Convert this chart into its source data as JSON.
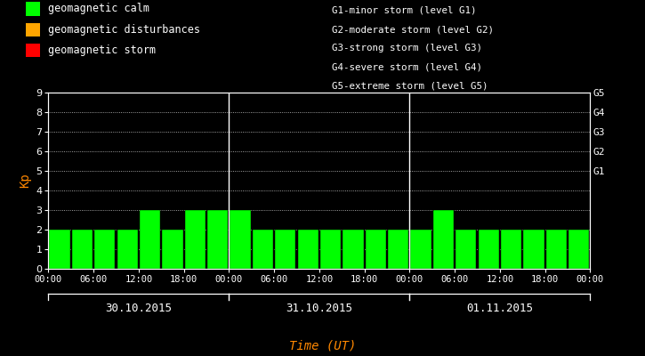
{
  "background_color": "#000000",
  "plot_bg_color": "#000000",
  "bar_color": "#00ff00",
  "grid_color": "#ffffff",
  "text_color": "#ffffff",
  "ylabel_color": "#ff8800",
  "xlabel_color": "#ff8800",
  "days": [
    "30.10.2015",
    "31.10.2015",
    "01.11.2015"
  ],
  "kp_values": [
    [
      2,
      2,
      2,
      2,
      3,
      2,
      3,
      3
    ],
    [
      3,
      2,
      2,
      2,
      2,
      2,
      2,
      2
    ],
    [
      2,
      3,
      2,
      2,
      2,
      2,
      2,
      2
    ]
  ],
  "ylim": [
    0,
    9
  ],
  "yticks": [
    0,
    1,
    2,
    3,
    4,
    5,
    6,
    7,
    8,
    9
  ],
  "right_labels": [
    "G1",
    "G2",
    "G3",
    "G4",
    "G5"
  ],
  "right_label_yvals": [
    5,
    6,
    7,
    8,
    9
  ],
  "legend_items": [
    {
      "label": "geomagnetic calm",
      "color": "#00ff00"
    },
    {
      "label": "geomagnetic disturbances",
      "color": "#ffa500"
    },
    {
      "label": "geomagnetic storm",
      "color": "#ff0000"
    }
  ],
  "legend2_lines": [
    "G1-minor storm (level G1)",
    "G2-moderate storm (level G2)",
    "G3-strong storm (level G3)",
    "G4-severe storm (level G4)",
    "G5-extreme storm (level G5)"
  ],
  "time_labels": [
    "00:00",
    "06:00",
    "12:00",
    "18:00",
    "00:00"
  ],
  "xlabel": "Time (UT)",
  "ylabel": "Kp",
  "num_bars_per_day": 8,
  "num_days": 3
}
